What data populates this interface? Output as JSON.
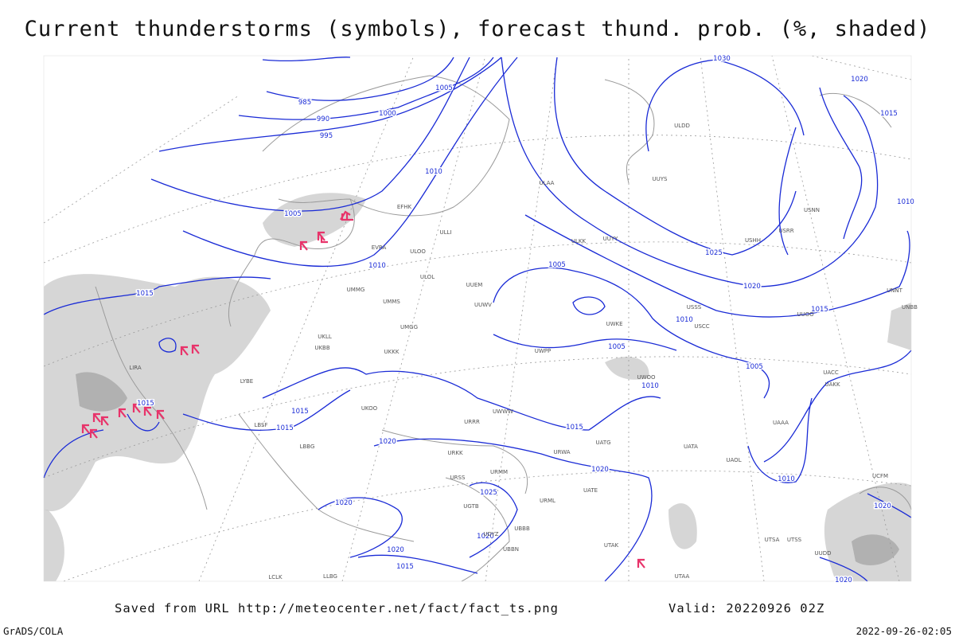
{
  "title": "Current thunderstorms (symbols), forecast thund. prob. (%, shaded)",
  "footer": {
    "source": "Saved from URL http://meteocenter.net/fact/fact_ts.png",
    "valid": "Valid: 20220926 02Z",
    "credit": "GrADS/COLA",
    "timestamp": "2022-09-26-02:05"
  },
  "isobar_labels": [
    "985",
    "990",
    "995",
    "1000",
    "1005",
    "1010",
    "1005",
    "1010",
    "1015",
    "1015",
    "1015",
    "1015",
    "1020",
    "1015",
    "1020",
    "1010",
    "1005",
    "1005",
    "1010",
    "1025",
    "1020",
    "1015",
    "1005",
    "1010",
    "1015",
    "1020",
    "1030",
    "1020",
    "1025",
    "1020",
    "1020",
    "1015",
    "1020",
    "1020",
    "1010"
  ],
  "stations": [
    "ULLI",
    "EFHK",
    "EVRA",
    "ULOO",
    "ULOL",
    "UMMG",
    "UMMS",
    "UMGG",
    "UKLL",
    "UKKK",
    "UKBB",
    "LIRA",
    "LYBE",
    "LBSF",
    "LBBG",
    "UKOO",
    "URRR",
    "URKK",
    "URSS",
    "UGTB",
    "UBBB",
    "UTAK",
    "UATG",
    "UATA",
    "UAOL",
    "UACC",
    "UAKK",
    "UAAA",
    "UWWW",
    "UWKE",
    "UWPP",
    "UWOO",
    "URWA",
    "UUEM",
    "UUYY",
    "ULKK",
    "ULAA",
    "UUYS",
    "ULDD",
    "USSS",
    "USCC",
    "USNN",
    "USRR",
    "USHH",
    "UUOO",
    "UNNT",
    "UNBB",
    "UTAA",
    "UTSA",
    "UTSS",
    "UCFM",
    "LLBG",
    "LCLK",
    "UUDD",
    "UDYZ",
    "UBBN",
    "URMM",
    "URML",
    "UATE",
    "UUWV"
  ]
}
